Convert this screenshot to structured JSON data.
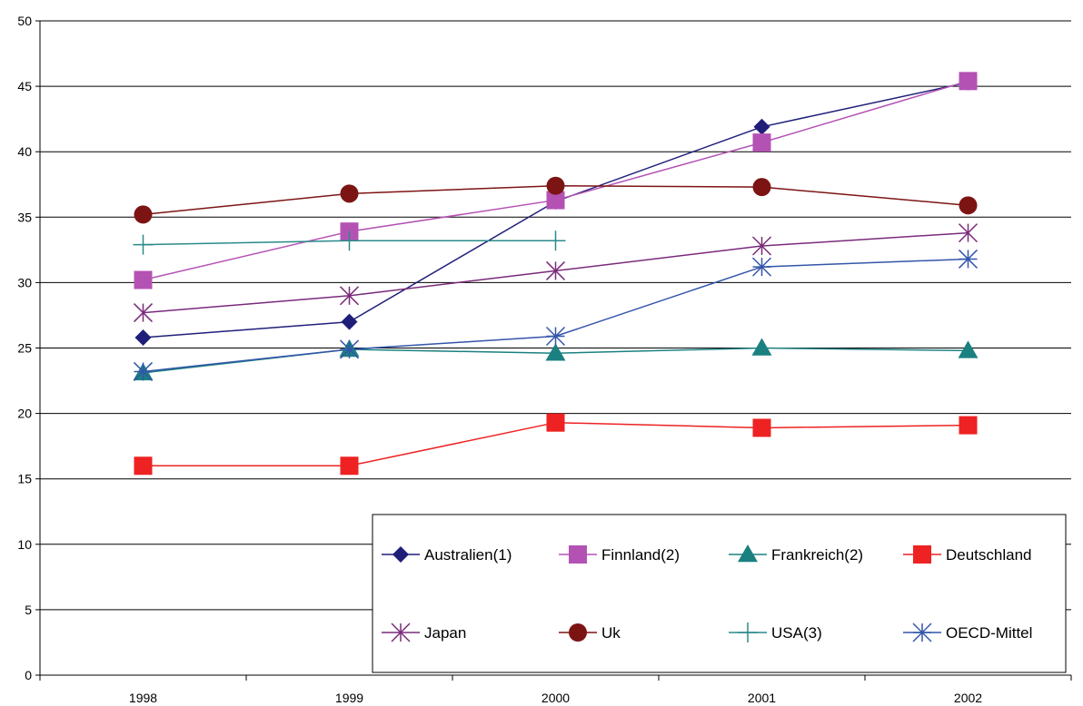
{
  "chart_data": {
    "type": "line",
    "title": "",
    "xlabel": "",
    "ylabel": "",
    "categories": [
      "1998",
      "1999",
      "2000",
      "2001",
      "2002"
    ],
    "ylim": [
      0,
      50
    ],
    "yticks": [
      0,
      5,
      10,
      15,
      20,
      25,
      30,
      35,
      40,
      45,
      50
    ],
    "grid": "horizontal",
    "legend_placement": "bottom-right",
    "series": [
      {
        "name": "Australien(1)",
        "color": "#1f1f7a",
        "marker": "diamond",
        "values": [
          25.8,
          27.0,
          36.2,
          41.9,
          45.3
        ]
      },
      {
        "name": "Finnland(2)",
        "color": "#b452b4",
        "marker": "square",
        "values": [
          30.2,
          33.9,
          36.3,
          40.7,
          45.4
        ]
      },
      {
        "name": "Frankreich(2)",
        "color": "#1b8080",
        "marker": "triangle",
        "values": [
          23.1,
          24.9,
          24.6,
          25.0,
          24.8
        ]
      },
      {
        "name": "Deutschland",
        "color": "#ee2222",
        "marker": "square",
        "values": [
          16.0,
          16.0,
          19.3,
          18.9,
          19.1
        ]
      },
      {
        "name": "Japan",
        "color": "#7a2a7a",
        "marker": "asterisk",
        "values": [
          27.7,
          29.0,
          30.9,
          32.8,
          33.8
        ]
      },
      {
        "name": "Uk",
        "color": "#7d1414",
        "marker": "circle",
        "values": [
          35.2,
          36.8,
          37.4,
          37.3,
          35.9
        ]
      },
      {
        "name": "USA(3)",
        "color": "#2a8a8a",
        "marker": "plus",
        "values": [
          32.9,
          33.2,
          33.2,
          null,
          null
        ]
      },
      {
        "name": "OECD-Mittel",
        "color": "#3355aa",
        "marker": "star",
        "values": [
          23.2,
          24.9,
          25.9,
          31.2,
          31.8
        ]
      }
    ]
  }
}
